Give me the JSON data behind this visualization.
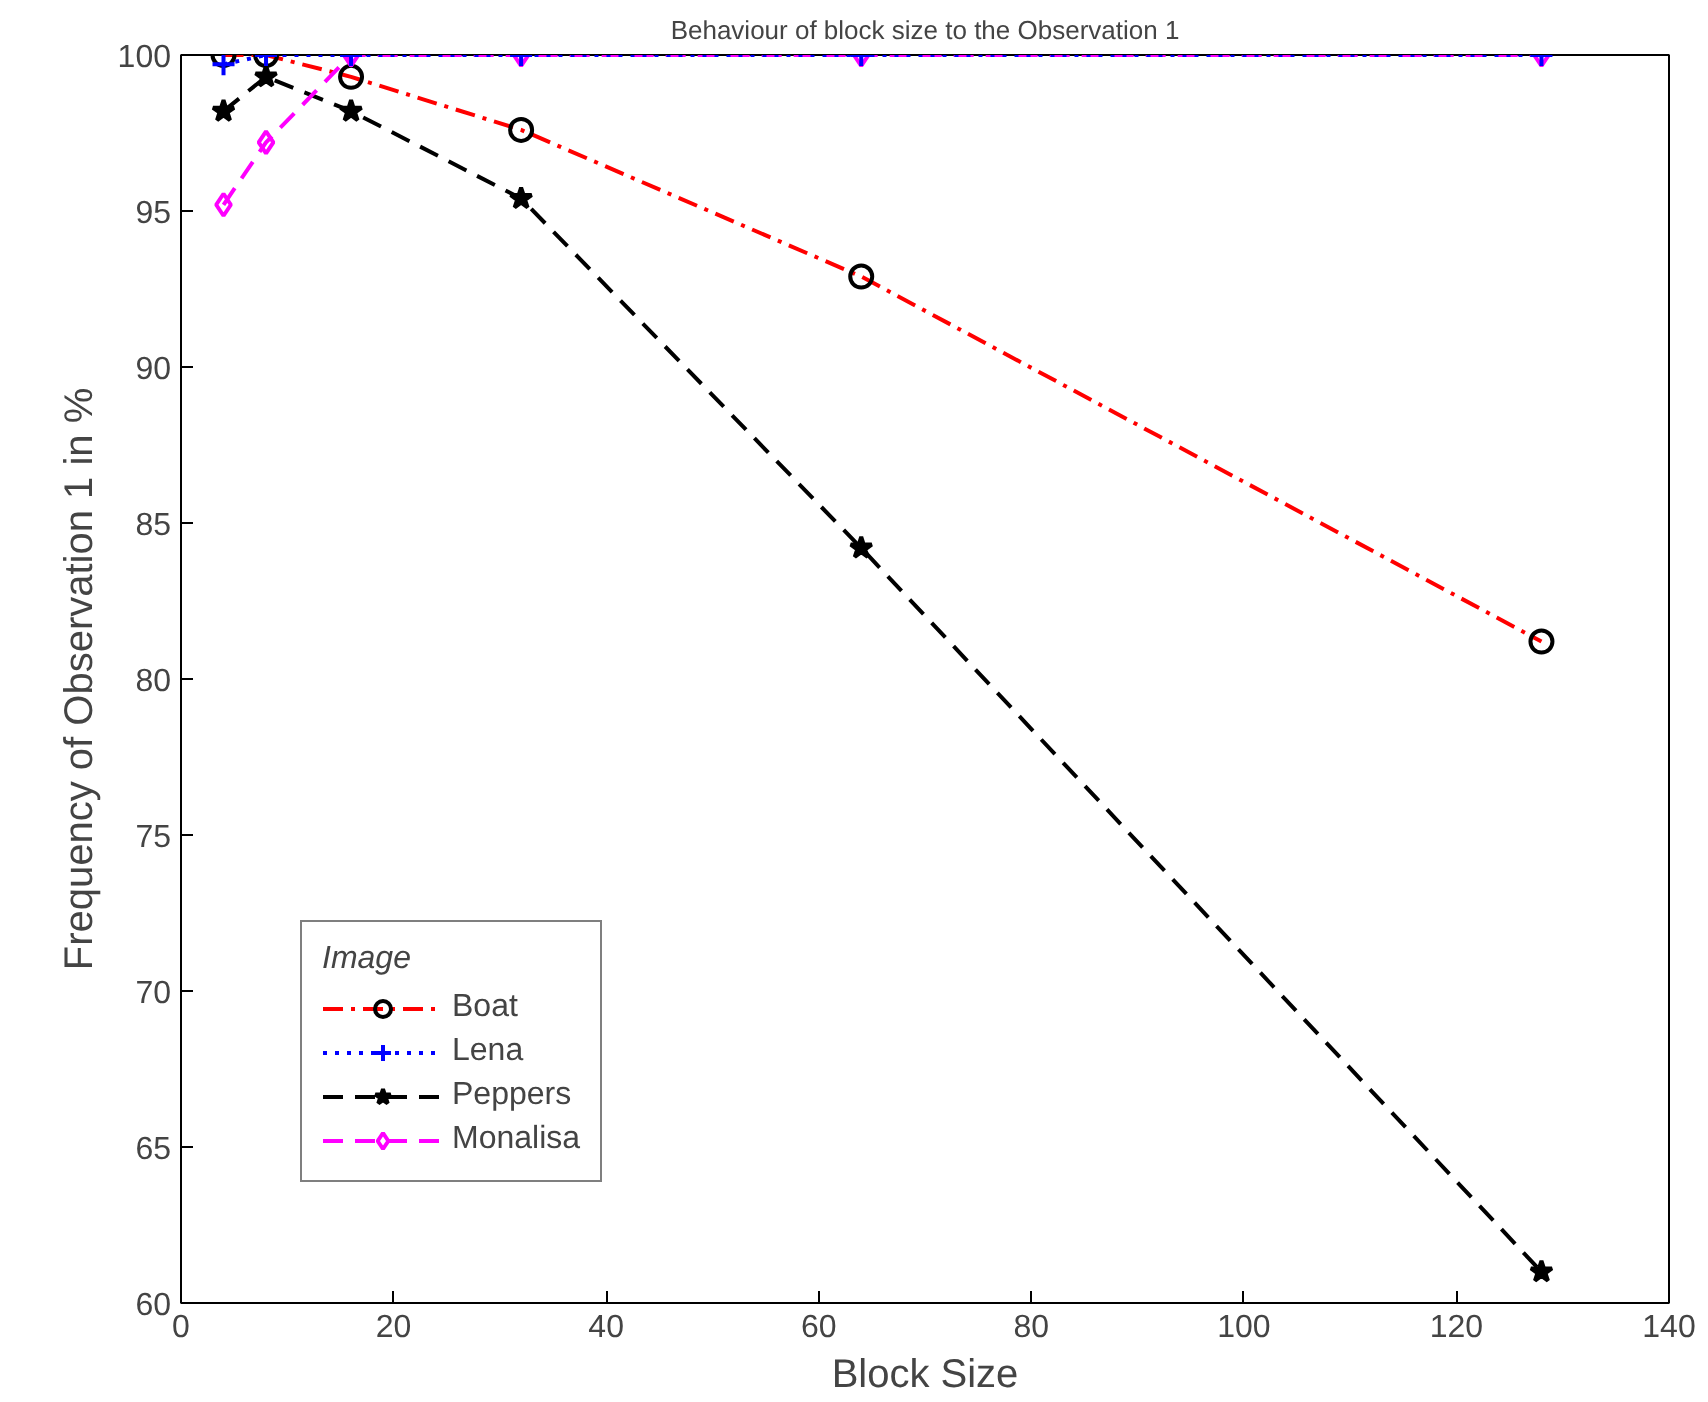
{
  "chart_data": {
    "type": "line",
    "title": "Behaviour of block size to the Observation 1",
    "xlabel": "Block Size",
    "ylabel": "Frequency of Observation 1 in %",
    "legend_title": "Image",
    "x": [
      4,
      8,
      16,
      32,
      64,
      128
    ],
    "series": [
      {
        "name": "Boat",
        "color": "#ff0000",
        "marker": "circle",
        "line_style": "dashdot",
        "values": [
          100,
          100,
          99.3,
          97.6,
          92.9,
          81.2
        ]
      },
      {
        "name": "Lena",
        "color": "#0000ff",
        "marker": "cross",
        "line_style": "dotted",
        "values": [
          99.7,
          100,
          100,
          100,
          100,
          100
        ]
      },
      {
        "name": "Peppers",
        "color": "#000000",
        "marker": "star",
        "line_style": "dashed",
        "values": [
          98.2,
          99.3,
          98.2,
          95.4,
          84.2,
          61.0
        ]
      },
      {
        "name": "Monalisa",
        "color": "#ff00ff",
        "marker": "diamond",
        "line_style": "dashed",
        "values": [
          95.2,
          97.2,
          100,
          100,
          100,
          100
        ]
      }
    ],
    "xlim": [
      0,
      140
    ],
    "xticks": [
      0,
      20,
      40,
      60,
      80,
      100,
      120,
      140
    ],
    "ylim": [
      60,
      100
    ],
    "yticks": [
      60,
      65,
      70,
      75,
      80,
      85,
      90,
      95,
      100
    ],
    "grid": false,
    "legend": "bottom left"
  }
}
